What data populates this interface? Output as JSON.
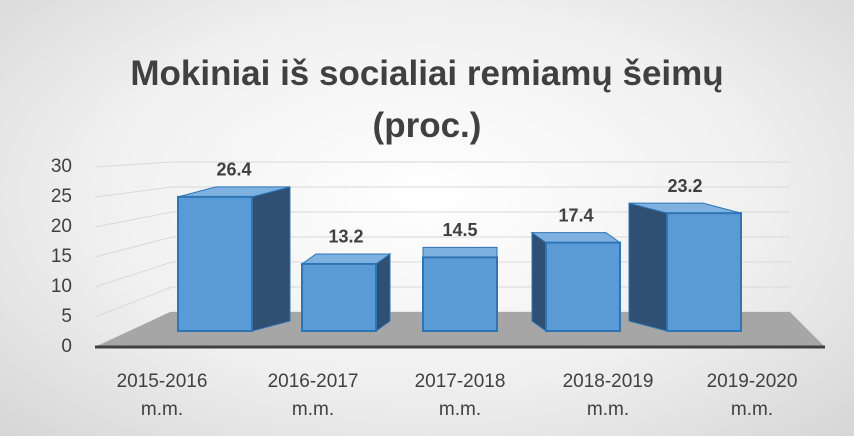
{
  "chart_data": {
    "type": "bar3d",
    "title": "Mokiniai iš socialiai remiamų šeimų (proc.)",
    "categories": [
      "2015-2016 m.m.",
      "2016-2017 m.m.",
      "2017-2018 m.m.",
      "2018-2019 m.m.",
      "2019-2020 m.m."
    ],
    "values": [
      26.4,
      13.2,
      14.5,
      17.4,
      23.2
    ],
    "color": "#5b9bd5",
    "ylim": [
      0,
      30
    ],
    "yticks": [
      0,
      5,
      10,
      15,
      20,
      25,
      30
    ],
    "grid": true
  }
}
